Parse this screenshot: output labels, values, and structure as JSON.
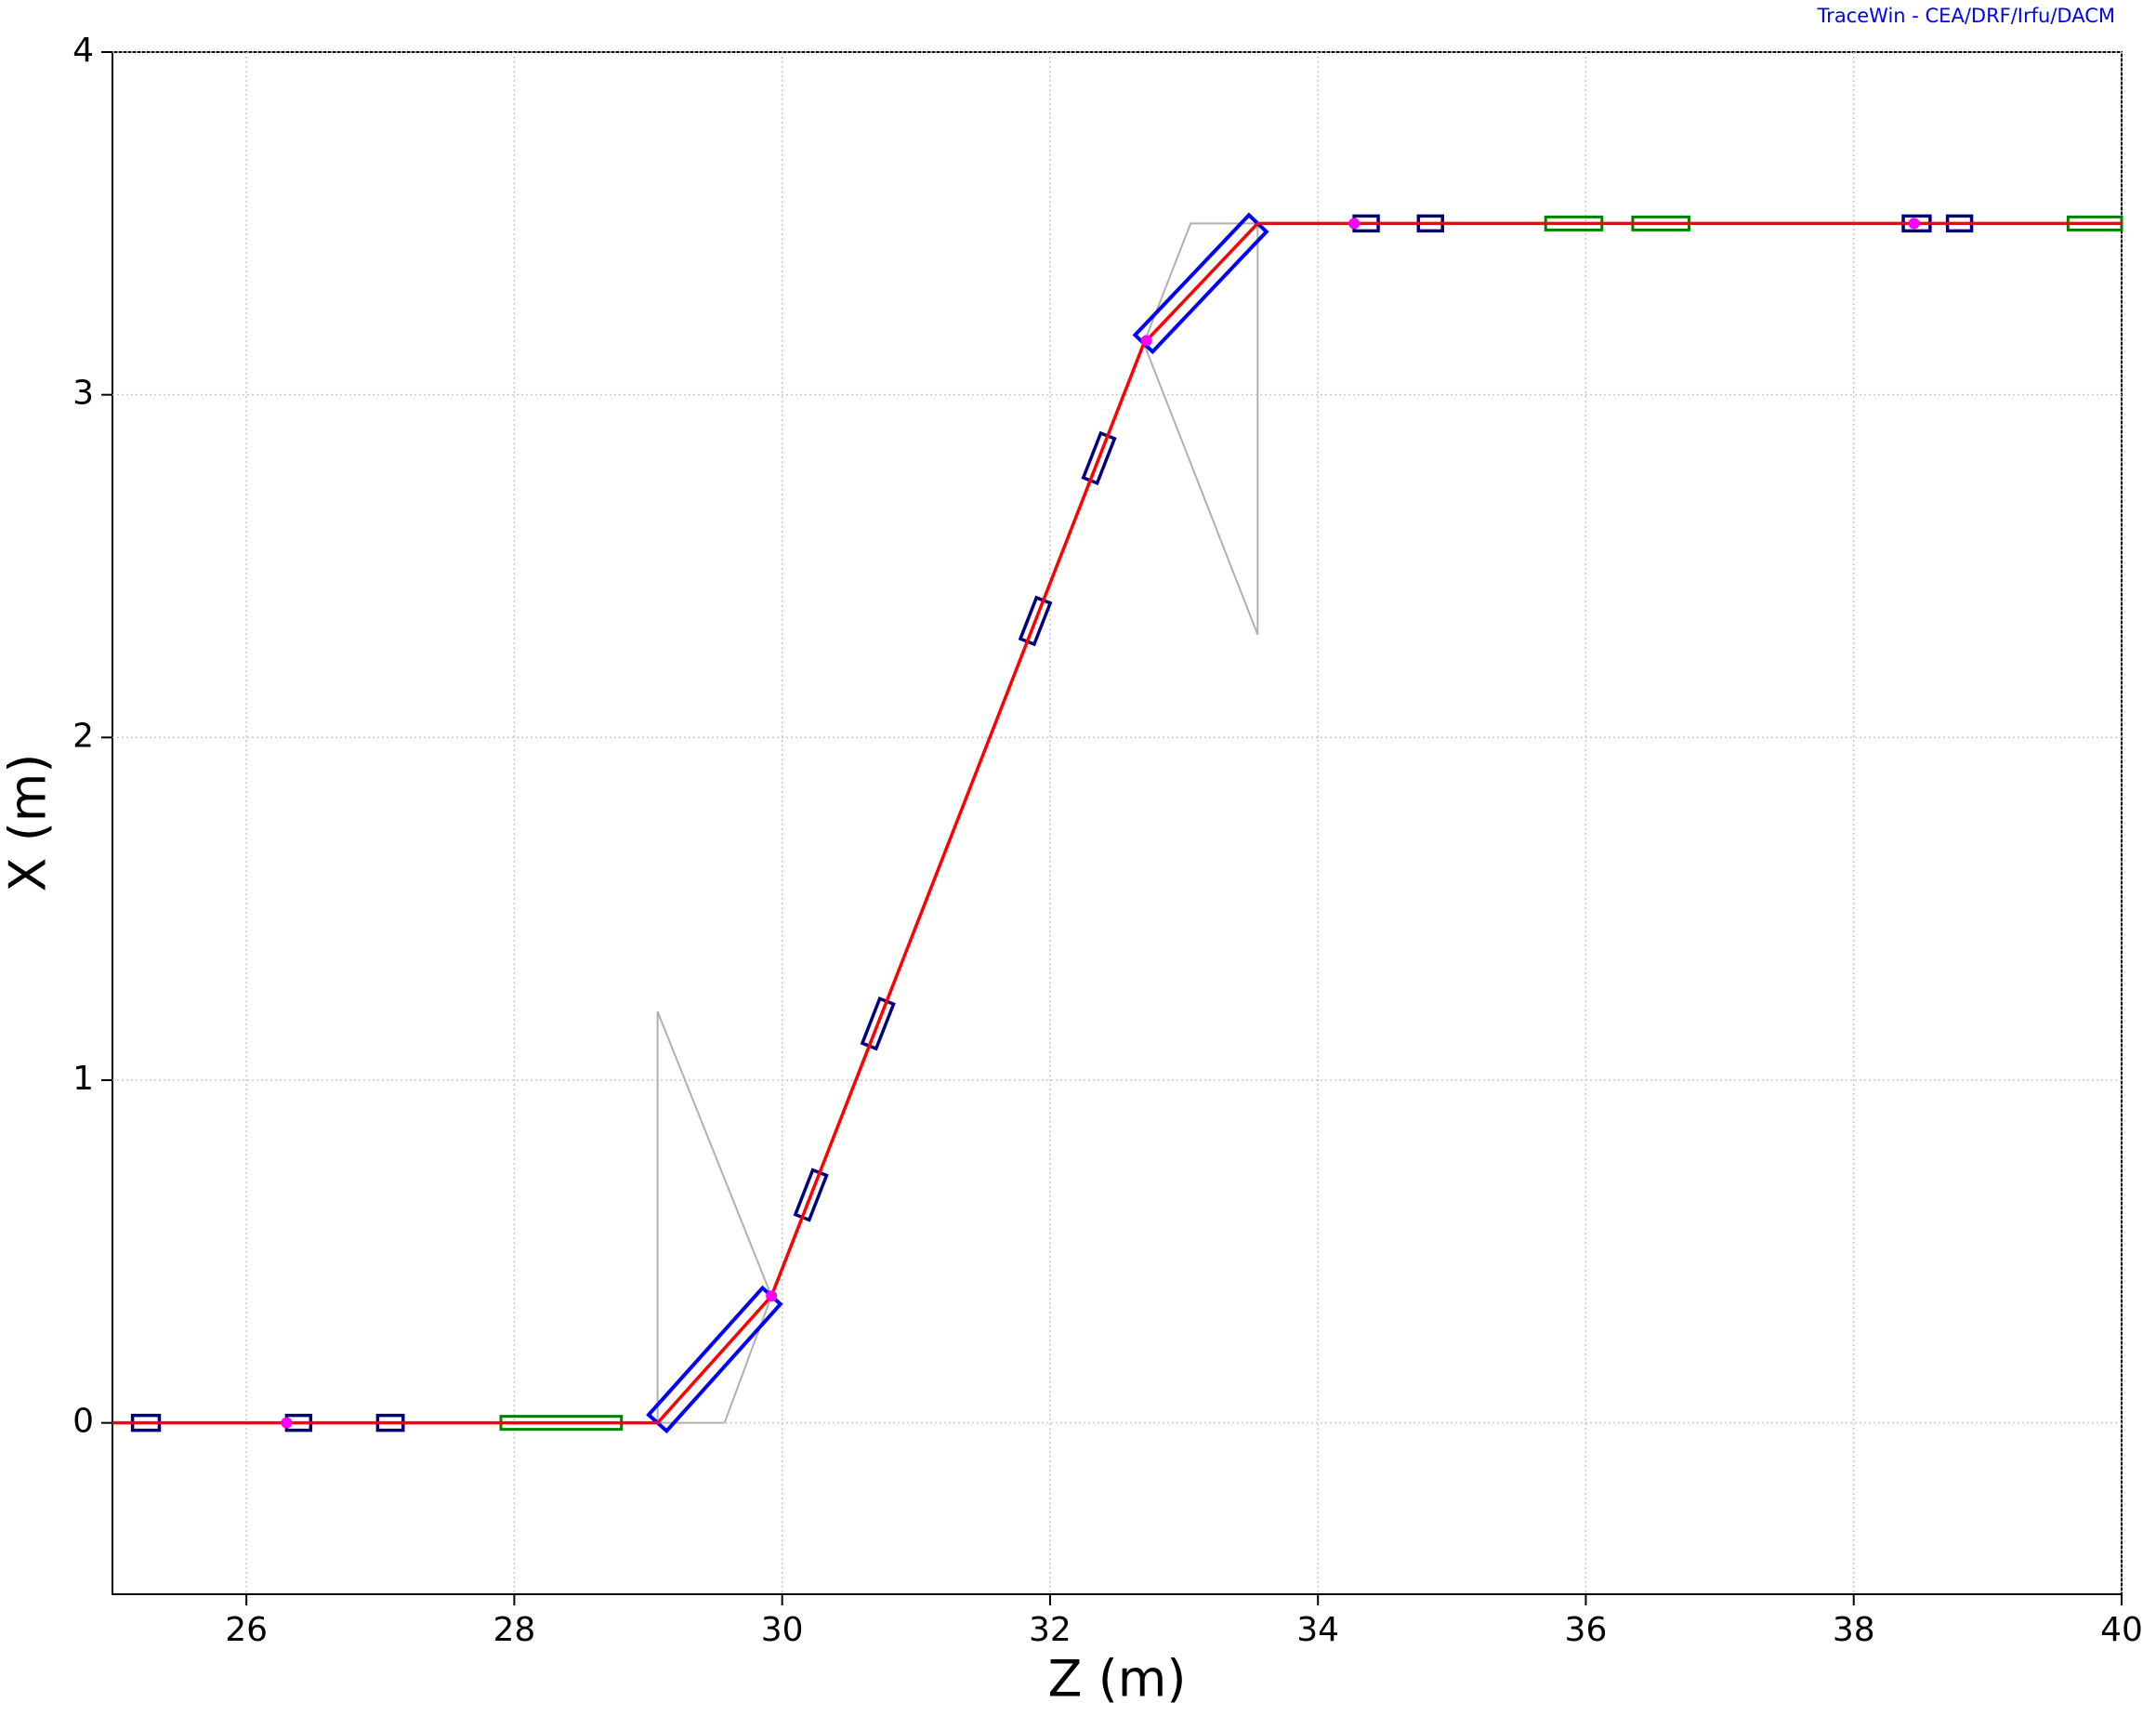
{
  "chart_data": {
    "type": "line",
    "credit": "TraceWin - CEA/DRF/Irfu/DACM",
    "x_label": "Z (m)",
    "y_label": "X (m)",
    "xlim": [
      25,
      40
    ],
    "ylim": [
      -0.5,
      4
    ],
    "xticks": [
      26,
      28,
      30,
      32,
      34,
      36,
      38,
      40
    ],
    "yticks": [
      0,
      1,
      2,
      3,
      4
    ],
    "grid": true,
    "x": [
      25,
      29.07,
      29.92,
      32.7,
      33.55,
      40
    ],
    "values": [
      0,
      0,
      0.37,
      3.15,
      3.5,
      3.5
    ],
    "color": "#ff0000",
    "envelope": {
      "color": "#b0b0b0",
      "segments": [
        {
          "x": [
            29.57,
            29.07,
            29.07,
            29.92,
            29.57
          ],
          "values": [
            0,
            0,
            1.2,
            0.37,
            0
          ]
        },
        {
          "x": [
            32.7,
            33.05,
            33.55,
            33.55,
            32.7
          ],
          "values": [
            3.15,
            3.5,
            3.5,
            2.3,
            3.15
          ]
        }
      ]
    },
    "dipoles": {
      "color": "#0000ff",
      "z_start": [
        29.07,
        32.7
      ],
      "z_end": [
        29.92,
        33.55
      ]
    },
    "quadrupoles": {
      "color": "#000080",
      "z_start": [
        25.15,
        26.3,
        26.98,
        30.15,
        30.65,
        31.83,
        32.3,
        34.27,
        34.75,
        38.37,
        38.7
      ],
      "z_end": [
        25.35,
        26.48,
        27.17,
        30.28,
        30.78,
        31.95,
        32.43,
        34.45,
        34.93,
        38.57,
        38.88
      ]
    },
    "drifts": {
      "color": "#008000",
      "z_start": [
        27.9,
        35.7,
        36.35,
        39.6
      ],
      "z_end": [
        28.8,
        36.12,
        36.77,
        40
      ]
    },
    "markers": {
      "color": "#ff00ff",
      "z": [
        26.3,
        29.92,
        32.72,
        34.27,
        38.45
      ]
    }
  }
}
